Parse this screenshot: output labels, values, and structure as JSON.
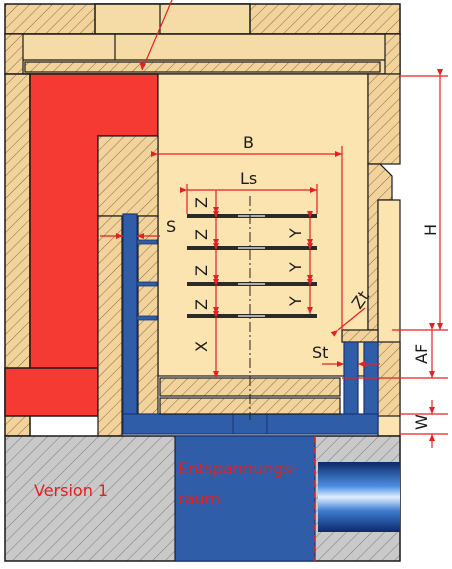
{
  "labels": {
    "B": "B",
    "Ls": "Ls",
    "S": "S",
    "Z": "Z",
    "Y": "Y",
    "X": "X",
    "Zt": "Zt",
    "St": "St",
    "H": "H",
    "AF": "AF",
    "W": "W",
    "version": "Version 1",
    "space_line1": "Entspannungs-",
    "space_line2": "raum"
  },
  "colors": {
    "cream": "#fbe4b0",
    "red_block": "#f53a33",
    "blue_metal": "#2f5da8",
    "blue_outline": "#1a3572",
    "hatch_fill": "#f3d39c",
    "grey_fill": "#c8c8c8",
    "dim_red": "#e62020",
    "outline": "#1a1a1a"
  },
  "icons": {
    "pipe": "pipe-icon"
  }
}
